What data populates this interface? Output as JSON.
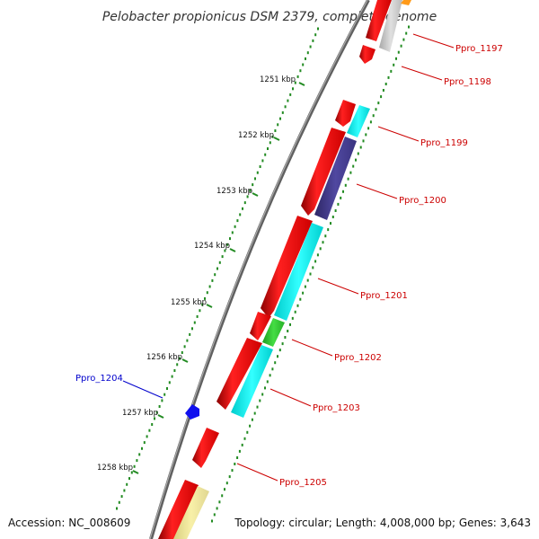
{
  "header": {
    "title": "Pelobacter propionicus DSM 2379, complete genome"
  },
  "footer": {
    "accession": "Accession: NC_008609",
    "summary": "Topology: circular; Length: 4,008,000 bp; Genes: 3,643"
  },
  "scale": {
    "ticks": [
      "1251 kbp",
      "1252 kbp",
      "1253 kbp",
      "1254 kbp",
      "1255 kbp",
      "1256 kbp",
      "1257 kbp",
      "1258 kbp"
    ]
  },
  "genes": [
    {
      "label": "Ppro_1197",
      "color": "#cc0000"
    },
    {
      "label": "Ppro_1198",
      "color": "#cc0000"
    },
    {
      "label": "Ppro_1199",
      "color": "#cc0000"
    },
    {
      "label": "Ppro_1200",
      "color": "#cc0000"
    },
    {
      "label": "Ppro_1201",
      "color": "#cc0000"
    },
    {
      "label": "Ppro_1202",
      "color": "#cc0000"
    },
    {
      "label": "Ppro_1203",
      "color": "#cc0000"
    },
    {
      "label": "Ppro_1204",
      "color": "#0000cc"
    },
    {
      "label": "Ppro_1205",
      "color": "#cc0000"
    }
  ],
  "colors": {
    "cds": "#ff0000",
    "cog_cyan": "#00ffff",
    "cog_purple": "#483d8b",
    "cog_green": "#32cd32",
    "cog_gray": "#c0c0c0",
    "cog_yellow": "#f0e68c",
    "cog_orange": "#ff8c00",
    "reverse_cds": "#0000ff",
    "backbone": "#808080",
    "tick": "#228b22"
  }
}
